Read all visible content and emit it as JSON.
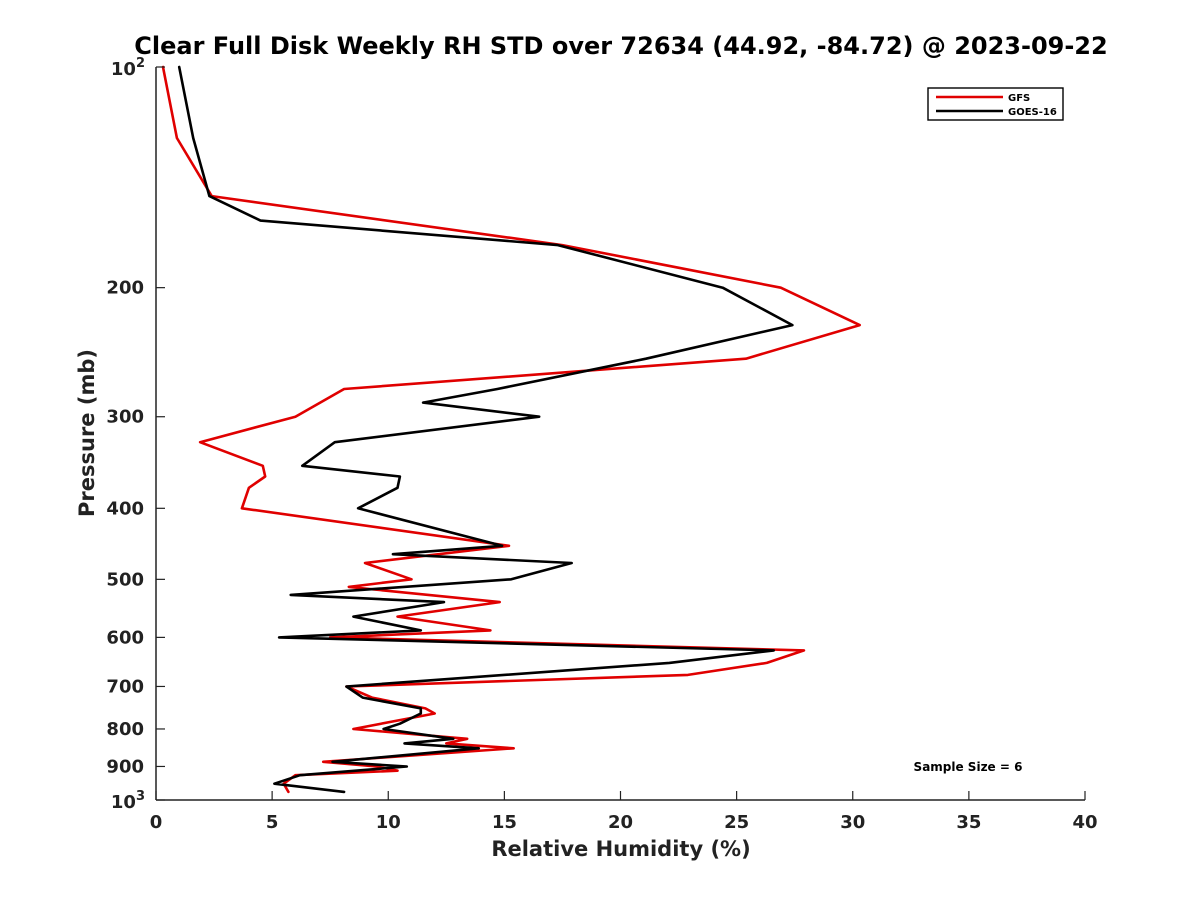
{
  "chart_data": {
    "type": "line",
    "title": "Clear Full Disk Weekly RH STD over 72634 (44.92, -84.72) @ 2023-09-22",
    "xlabel": "Relative Humidity (%)",
    "ylabel": "Pressure (mb)",
    "xlim": [
      0,
      40
    ],
    "ylim": [
      100,
      1000
    ],
    "yscale": "log",
    "y_reversed": true,
    "xticks": [
      0,
      5,
      10,
      15,
      20,
      25,
      30,
      35,
      40
    ],
    "xtick_labels": [
      "0",
      "5",
      "10",
      "15",
      "20",
      "25",
      "30",
      "35",
      "40"
    ],
    "yticks": [
      200,
      300,
      400,
      500,
      600,
      700,
      800,
      900
    ],
    "ytick_labels": [
      "200",
      "300",
      "400",
      "500",
      "600",
      "700",
      "800",
      "900"
    ],
    "ytick_major": [
      {
        "value": 100,
        "base": "10",
        "exp": "2"
      },
      {
        "value": 1000,
        "base": "10",
        "exp": "3"
      }
    ],
    "legend_position": "top-right",
    "annotation": "Sample Size = 6",
    "series": [
      {
        "name": "GFS",
        "color": "#e00000",
        "points": [
          [
            0.3,
            100
          ],
          [
            0.9,
            125
          ],
          [
            2.4,
            150
          ],
          [
            17.5,
            175
          ],
          [
            26.9,
            200
          ],
          [
            30.3,
            225
          ],
          [
            25.4,
            250
          ],
          [
            8.1,
            275
          ],
          [
            6.0,
            300
          ],
          [
            1.9,
            325
          ],
          [
            4.6,
            350
          ],
          [
            4.7,
            362
          ],
          [
            4.0,
            375
          ],
          [
            3.7,
            400
          ],
          [
            15.2,
            450
          ],
          [
            9.0,
            475
          ],
          [
            11.0,
            500
          ],
          [
            8.3,
            512
          ],
          [
            14.8,
            537
          ],
          [
            10.4,
            562
          ],
          [
            14.4,
            587
          ],
          [
            7.5,
            600
          ],
          [
            27.9,
            625
          ],
          [
            26.3,
            650
          ],
          [
            22.9,
            675
          ],
          [
            8.2,
            700
          ],
          [
            9.3,
            725
          ],
          [
            11.6,
            750
          ],
          [
            12.0,
            762
          ],
          [
            8.5,
            800
          ],
          [
            13.4,
            825
          ],
          [
            12.5,
            837
          ],
          [
            15.4,
            850
          ],
          [
            7.2,
            887
          ],
          [
            9.5,
            900
          ],
          [
            10.4,
            912
          ],
          [
            6.0,
            925
          ],
          [
            5.5,
            950
          ],
          [
            5.7,
            975
          ]
        ]
      },
      {
        "name": "GOES-16",
        "color": "#000000",
        "points": [
          [
            1.0,
            100
          ],
          [
            1.6,
            125
          ],
          [
            2.3,
            150
          ],
          [
            4.5,
            162
          ],
          [
            17.3,
            175
          ],
          [
            24.4,
            200
          ],
          [
            27.4,
            225
          ],
          [
            21.1,
            250
          ],
          [
            14.7,
            275
          ],
          [
            11.5,
            287
          ],
          [
            16.5,
            300
          ],
          [
            7.7,
            325
          ],
          [
            6.3,
            350
          ],
          [
            10.5,
            362
          ],
          [
            10.4,
            375
          ],
          [
            8.7,
            400
          ],
          [
            14.9,
            450
          ],
          [
            10.2,
            462
          ],
          [
            17.9,
            475
          ],
          [
            15.3,
            500
          ],
          [
            5.8,
            525
          ],
          [
            12.4,
            537
          ],
          [
            8.5,
            562
          ],
          [
            11.4,
            587
          ],
          [
            5.3,
            600
          ],
          [
            26.6,
            625
          ],
          [
            22.1,
            650
          ],
          [
            8.2,
            700
          ],
          [
            8.9,
            725
          ],
          [
            11.4,
            750
          ],
          [
            11.4,
            762
          ],
          [
            10.5,
            787
          ],
          [
            9.8,
            800
          ],
          [
            12.8,
            825
          ],
          [
            10.7,
            837
          ],
          [
            13.9,
            850
          ],
          [
            7.6,
            887
          ],
          [
            10.8,
            900
          ],
          [
            6.2,
            925
          ],
          [
            5.1,
            950
          ],
          [
            8.1,
            975
          ]
        ]
      }
    ]
  }
}
